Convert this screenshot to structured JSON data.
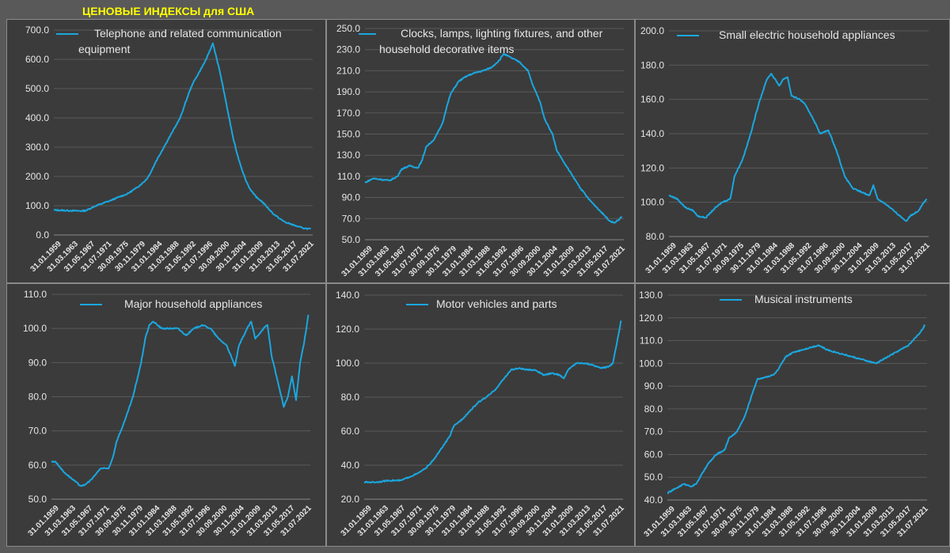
{
  "page": {
    "title": "ЦЕНОВЫЕ ИНДЕКСЫ для США"
  },
  "colors": {
    "line": "#1aa7e0",
    "title": "#ffff00",
    "text": "#e6e6e6"
  },
  "x_ticks": [
    "31.01.1959",
    "31.03.1963",
    "31.05.1967",
    "31.07.1971",
    "30.09.1975",
    "30.11.1979",
    "31.01.1984",
    "31.03.1988",
    "31.05.1992",
    "31.07.1996",
    "30.09.2000",
    "30.11.2004",
    "31.01.2009",
    "31.03.2013",
    "31.05.2017",
    "31.07.2021"
  ],
  "chart_data": [
    {
      "type": "line",
      "legend": [
        "Telephone and related communication",
        "equipment"
      ],
      "ylim": [
        0,
        700
      ],
      "ystep": 100,
      "y_ticks": [
        "0.0",
        "100.0",
        "200.0",
        "300.0",
        "400.0",
        "500.0",
        "600.0",
        "700.0"
      ],
      "series": [
        {
          "name": "Telephone and related communication equipment",
          "points": [
            [
              1959,
              85
            ],
            [
              1963,
              83
            ],
            [
              1966,
              82
            ],
            [
              1967,
              84
            ],
            [
              1969,
              98
            ],
            [
              1971,
              108
            ],
            [
              1973,
              118
            ],
            [
              1975,
              130
            ],
            [
              1977,
              140
            ],
            [
              1979,
              158
            ],
            [
              1981,
              180
            ],
            [
              1982,
              195
            ],
            [
              1983,
              220
            ],
            [
              1984,
              250
            ],
            [
              1986,
              300
            ],
            [
              1988,
              350
            ],
            [
              1990,
              400
            ],
            [
              1991,
              440
            ],
            [
              1992,
              480
            ],
            [
              1993,
              515
            ],
            [
              1994,
              540
            ],
            [
              1995,
              565
            ],
            [
              1996,
              590
            ],
            [
              1997,
              620
            ],
            [
              1998,
              655
            ],
            [
              1999,
              600
            ],
            [
              2000,
              540
            ],
            [
              2001,
              470
            ],
            [
              2002,
              400
            ],
            [
              2003,
              330
            ],
            [
              2004,
              275
            ],
            [
              2005,
              230
            ],
            [
              2006,
              190
            ],
            [
              2007,
              160
            ],
            [
              2008,
              140
            ],
            [
              2009,
              125
            ],
            [
              2010,
              115
            ],
            [
              2011,
              100
            ],
            [
              2012,
              85
            ],
            [
              2013,
              70
            ],
            [
              2014,
              60
            ],
            [
              2015,
              50
            ],
            [
              2016,
              42
            ],
            [
              2017,
              38
            ],
            [
              2018,
              33
            ],
            [
              2019,
              28
            ],
            [
              2020,
              24
            ],
            [
              2021,
              22
            ],
            [
              2022,
              20
            ]
          ]
        }
      ]
    },
    {
      "type": "line",
      "legend": [
        "Clocks, lamps, lighting fixtures, and other",
        "household decorative items"
      ],
      "ylim": [
        50,
        250
      ],
      "ystep": 20,
      "y_ticks": [
        "50.0",
        "70.0",
        "90.0",
        "110.0",
        "130.0",
        "150.0",
        "170.0",
        "190.0",
        "210.0",
        "230.0",
        "250.0"
      ],
      "series": [
        {
          "name": "Clocks, lamps, lighting fixtures, and other household decorative items",
          "points": [
            [
              1959,
              104
            ],
            [
              1961,
              108
            ],
            [
              1963,
              107
            ],
            [
              1965,
              106
            ],
            [
              1967,
              110
            ],
            [
              1968,
              117
            ],
            [
              1970,
              120
            ],
            [
              1972,
              118
            ],
            [
              1973,
              125
            ],
            [
              1974,
              138
            ],
            [
              1976,
              145
            ],
            [
              1978,
              160
            ],
            [
              1979,
              175
            ],
            [
              1980,
              188
            ],
            [
              1982,
              200
            ],
            [
              1984,
              205
            ],
            [
              1986,
              208
            ],
            [
              1988,
              210
            ],
            [
              1990,
              213
            ],
            [
              1992,
              220
            ],
            [
              1993,
              226
            ],
            [
              1995,
              222
            ],
            [
              1997,
              218
            ],
            [
              1999,
              210
            ],
            [
              2000,
              198
            ],
            [
              2002,
              180
            ],
            [
              2003,
              165
            ],
            [
              2005,
              150
            ],
            [
              2006,
              135
            ],
            [
              2008,
              122
            ],
            [
              2010,
              110
            ],
            [
              2012,
              98
            ],
            [
              2014,
              88
            ],
            [
              2016,
              80
            ],
            [
              2018,
              72
            ],
            [
              2019,
              68
            ],
            [
              2020,
              66
            ],
            [
              2021,
              68
            ],
            [
              2022,
              72
            ]
          ]
        }
      ]
    },
    {
      "type": "line",
      "legend": [
        "Small electric household appliances"
      ],
      "ylim": [
        80,
        200
      ],
      "ystep": 20,
      "y_ticks": [
        "80.0",
        "100.0",
        "120.0",
        "140.0",
        "160.0",
        "180.0",
        "200.0"
      ],
      "series": [
        {
          "name": "Small electric household appliances",
          "points": [
            [
              1959,
              104
            ],
            [
              1961,
              102
            ],
            [
              1963,
              97
            ],
            [
              1965,
              95
            ],
            [
              1966,
              92
            ],
            [
              1968,
              91
            ],
            [
              1970,
              96
            ],
            [
              1972,
              100
            ],
            [
              1974,
              102
            ],
            [
              1975,
              115
            ],
            [
              1977,
              125
            ],
            [
              1979,
              140
            ],
            [
              1981,
              158
            ],
            [
              1983,
              172
            ],
            [
              1984,
              175
            ],
            [
              1986,
              168
            ],
            [
              1987,
              172
            ],
            [
              1988,
              173
            ],
            [
              1989,
              162
            ],
            [
              1991,
              160
            ],
            [
              1992,
              158
            ],
            [
              1994,
              150
            ],
            [
              1996,
              140
            ],
            [
              1998,
              142
            ],
            [
              2000,
              130
            ],
            [
              2002,
              115
            ],
            [
              2004,
              108
            ],
            [
              2006,
              106
            ],
            [
              2008,
              104
            ],
            [
              2009,
              110
            ],
            [
              2010,
              102
            ],
            [
              2012,
              99
            ],
            [
              2014,
              95
            ],
            [
              2016,
              91
            ],
            [
              2017,
              89
            ],
            [
              2018,
              92
            ],
            [
              2020,
              95
            ],
            [
              2021,
              99
            ],
            [
              2022,
              102
            ]
          ]
        }
      ]
    },
    {
      "type": "line",
      "legend": [
        "Major household appliances"
      ],
      "ylim": [
        50,
        110
      ],
      "ystep": 10,
      "y_ticks": [
        "50.0",
        "60.0",
        "70.0",
        "80.0",
        "90.0",
        "100.0",
        "110.0"
      ],
      "series": [
        {
          "name": "Major household appliances",
          "points": [
            [
              1959,
              61
            ],
            [
              1960,
              61
            ],
            [
              1962,
              58
            ],
            [
              1964,
              56
            ],
            [
              1966,
              54
            ],
            [
              1967,
              54
            ],
            [
              1969,
              56
            ],
            [
              1971,
              59
            ],
            [
              1973,
              59
            ],
            [
              1974,
              62
            ],
            [
              1975,
              67
            ],
            [
              1977,
              73
            ],
            [
              1979,
              80
            ],
            [
              1981,
              90
            ],
            [
              1982,
              97
            ],
            [
              1983,
              101
            ],
            [
              1984,
              102
            ],
            [
              1986,
              100
            ],
            [
              1988,
              100
            ],
            [
              1990,
              100
            ],
            [
              1992,
              98
            ],
            [
              1994,
              100
            ],
            [
              1996,
              101
            ],
            [
              1998,
              100
            ],
            [
              2000,
              97
            ],
            [
              2002,
              95
            ],
            [
              2004,
              89
            ],
            [
              2005,
              95
            ],
            [
              2007,
              100
            ],
            [
              2008,
              102
            ],
            [
              2009,
              97
            ],
            [
              2011,
              100
            ],
            [
              2012,
              101
            ],
            [
              2013,
              92
            ],
            [
              2015,
              82
            ],
            [
              2016,
              77
            ],
            [
              2017,
              80
            ],
            [
              2018,
              86
            ],
            [
              2019,
              79
            ],
            [
              2020,
              90
            ],
            [
              2021,
              96
            ],
            [
              2022,
              104
            ]
          ]
        }
      ]
    },
    {
      "type": "line",
      "legend": [
        "Motor vehicles and parts"
      ],
      "ylim": [
        20,
        140
      ],
      "ystep": 20,
      "y_ticks": [
        "20.0",
        "40.0",
        "60.0",
        "80.0",
        "100.0",
        "120.0",
        "140.0"
      ],
      "series": [
        {
          "name": "Motor vehicles and parts",
          "points": [
            [
              1959,
              30
            ],
            [
              1962,
              30
            ],
            [
              1965,
              31
            ],
            [
              1968,
              31
            ],
            [
              1970,
              33
            ],
            [
              1972,
              35
            ],
            [
              1974,
              38
            ],
            [
              1976,
              43
            ],
            [
              1978,
              50
            ],
            [
              1980,
              57
            ],
            [
              1981,
              63
            ],
            [
              1983,
              67
            ],
            [
              1985,
              72
            ],
            [
              1987,
              77
            ],
            [
              1989,
              80
            ],
            [
              1991,
              84
            ],
            [
              1993,
              90
            ],
            [
              1995,
              96
            ],
            [
              1997,
              97
            ],
            [
              1999,
              96
            ],
            [
              2001,
              96
            ],
            [
              2003,
              93
            ],
            [
              2005,
              94
            ],
            [
              2007,
              93
            ],
            [
              2008,
              91
            ],
            [
              2009,
              96
            ],
            [
              2011,
              100
            ],
            [
              2013,
              100
            ],
            [
              2015,
              99
            ],
            [
              2017,
              97
            ],
            [
              2019,
              98
            ],
            [
              2020,
              100
            ],
            [
              2021,
              112
            ],
            [
              2022,
              125
            ]
          ]
        }
      ]
    },
    {
      "type": "line",
      "legend": [
        "Musical instruments"
      ],
      "ylim": [
        40,
        130
      ],
      "ystep": 10,
      "y_ticks": [
        "40.0",
        "50.0",
        "60.0",
        "70.0",
        "80.0",
        "90.0",
        "100.0",
        "110.0",
        "120.0",
        "130.0"
      ],
      "series": [
        {
          "name": "Musical instruments",
          "points": [
            [
              1959,
              43
            ],
            [
              1961,
              45
            ],
            [
              1963,
              47
            ],
            [
              1965,
              46
            ],
            [
              1966,
              47
            ],
            [
              1967,
              50
            ],
            [
              1969,
              56
            ],
            [
              1971,
              60
            ],
            [
              1973,
              62
            ],
            [
              1974,
              67
            ],
            [
              1976,
              70
            ],
            [
              1978,
              77
            ],
            [
              1980,
              88
            ],
            [
              1981,
              93
            ],
            [
              1983,
              94
            ],
            [
              1985,
              95
            ],
            [
              1986,
              97
            ],
            [
              1988,
              103
            ],
            [
              1990,
              105
            ],
            [
              1992,
              106
            ],
            [
              1994,
              107
            ],
            [
              1996,
              108
            ],
            [
              1998,
              106
            ],
            [
              2000,
              105
            ],
            [
              2002,
              104
            ],
            [
              2004,
              103
            ],
            [
              2006,
              102
            ],
            [
              2008,
              101
            ],
            [
              2010,
              100
            ],
            [
              2012,
              102
            ],
            [
              2014,
              104
            ],
            [
              2016,
              106
            ],
            [
              2018,
              108
            ],
            [
              2019,
              110
            ],
            [
              2020,
              112
            ],
            [
              2021,
              114
            ],
            [
              2022,
              117
            ]
          ]
        }
      ]
    }
  ]
}
